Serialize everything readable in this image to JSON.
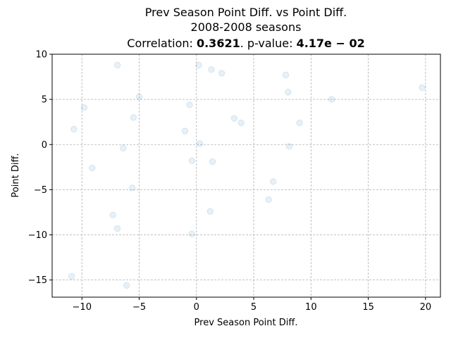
{
  "chart_data": {
    "type": "scatter",
    "title_lines": [
      "Prev Season Point Diff. vs Point Diff.",
      "2008-2008 seasons"
    ],
    "correlation_prefix": "Correlation: ",
    "correlation_value": "0.3621",
    "pvalue_prefix": ". p-value: ",
    "pvalue_value": "4.17e − 02",
    "xlabel": "Prev Season Point Diff.",
    "ylabel": "Point Diff.",
    "xlim": [
      -12.6,
      21.3
    ],
    "ylim": [
      -16.9,
      10.0
    ],
    "xticks": [
      -10,
      -5,
      0,
      5,
      10,
      15,
      20
    ],
    "xtick_labels": [
      "−10",
      "−5",
      "0",
      "5",
      "10",
      "15",
      "20"
    ],
    "yticks": [
      -15,
      -10,
      -5,
      0,
      5,
      10
    ],
    "ytick_labels": [
      "−15",
      "−10",
      "−5",
      "0",
      "5",
      "10"
    ],
    "grid": true,
    "point_color": "#1f77b4",
    "points": [
      {
        "x": -6.9,
        "y": 8.8
      },
      {
        "x": 0.2,
        "y": 8.8
      },
      {
        "x": 1.3,
        "y": 8.3
      },
      {
        "x": 2.2,
        "y": 7.9
      },
      {
        "x": 7.8,
        "y": 7.7
      },
      {
        "x": 19.7,
        "y": 6.3
      },
      {
        "x": 8.0,
        "y": 5.8
      },
      {
        "x": -5.0,
        "y": 5.3
      },
      {
        "x": 11.8,
        "y": 5.0
      },
      {
        "x": -0.6,
        "y": 4.4
      },
      {
        "x": -9.8,
        "y": 4.1
      },
      {
        "x": -5.5,
        "y": 3.0
      },
      {
        "x": 3.3,
        "y": 2.9
      },
      {
        "x": 3.9,
        "y": 2.4
      },
      {
        "x": 9.0,
        "y": 2.4
      },
      {
        "x": -10.7,
        "y": 1.7
      },
      {
        "x": -1.0,
        "y": 1.5
      },
      {
        "x": 0.3,
        "y": 0.1
      },
      {
        "x": 8.1,
        "y": -0.2
      },
      {
        "x": -6.4,
        "y": -0.4
      },
      {
        "x": -0.4,
        "y": -1.8
      },
      {
        "x": 1.4,
        "y": -1.9
      },
      {
        "x": -9.1,
        "y": -2.6
      },
      {
        "x": 6.7,
        "y": -4.1
      },
      {
        "x": -5.6,
        "y": -4.8
      },
      {
        "x": 6.3,
        "y": -6.1
      },
      {
        "x": 1.2,
        "y": -7.4
      },
      {
        "x": -7.3,
        "y": -7.8
      },
      {
        "x": -6.9,
        "y": -9.3
      },
      {
        "x": -0.4,
        "y": -9.9
      },
      {
        "x": -10.9,
        "y": -14.6
      },
      {
        "x": -6.1,
        "y": -15.6
      }
    ]
  }
}
